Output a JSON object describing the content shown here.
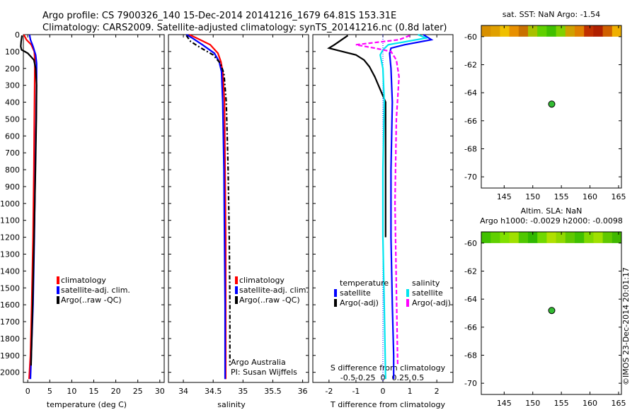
{
  "header": {
    "line1": "Argo profile: CS 7900326_140 15-Dec-2014 20141216_1679 64.81S 153.31E",
    "line2": "Climatology: CARS2009. Satellite-adjusted climatology: synTS_20141216.nc (0.8d later)"
  },
  "colors": {
    "climatology": "#ff0000",
    "satellite": "#0000ff",
    "argo": "#000000",
    "sat_salinity": "#00e5ee",
    "argo_salinity": "#ff00ff",
    "float_marker": "#33bb33"
  },
  "chart_data": [
    {
      "type": "line",
      "name": "temperature-profile",
      "xlabel": "temperature (deg C)",
      "ylabel": "",
      "xlim": [
        -1,
        31
      ],
      "ylim": [
        2060,
        0
      ],
      "xticks": [
        0,
        5,
        10,
        15,
        20,
        25,
        30
      ],
      "yticks": [
        0,
        100,
        200,
        300,
        400,
        500,
        600,
        700,
        800,
        900,
        1000,
        1100,
        1200,
        1300,
        1400,
        1500,
        1600,
        1700,
        1800,
        1900,
        2000
      ],
      "legend": [
        "climatology",
        "satellite-adj. clim.",
        "Argo(..raw -QC)"
      ],
      "series": [
        {
          "name": "climatology",
          "color": "#ff0000",
          "x": [
            -0.9,
            -0.3,
            0.8,
            1.5,
            1.6,
            1.6,
            1.5,
            1.4,
            1.2,
            0.9,
            0.6,
            0.3
          ],
          "y": [
            0,
            30,
            60,
            100,
            150,
            200,
            500,
            800,
            1200,
            1600,
            1900,
            2040
          ]
        },
        {
          "name": "satellite-adj. clim.",
          "color": "#0000ff",
          "x": [
            0.4,
            0.6,
            1.2,
            1.8,
            2.0,
            2.0,
            1.9,
            1.7,
            1.5,
            1.2,
            0.8,
            0.6
          ],
          "y": [
            0,
            30,
            70,
            120,
            170,
            250,
            500,
            800,
            1200,
            1600,
            1900,
            2040
          ]
        },
        {
          "name": "Argo",
          "color": "#000000",
          "x": [
            -1.3,
            -1.5,
            -1.6,
            -1.4,
            0.0,
            1.4,
            1.8,
            2.0,
            1.95,
            1.75,
            1.45,
            1.1,
            0.75
          ],
          "y": [
            5,
            40,
            70,
            90,
            110,
            150,
            200,
            300,
            500,
            800,
            1200,
            1600,
            1960
          ]
        }
      ]
    },
    {
      "type": "line",
      "name": "salinity-profile",
      "xlabel": "salinity",
      "xlim": [
        33.75,
        36.1
      ],
      "ylim": [
        2060,
        0
      ],
      "xticks": [
        34,
        34.5,
        35,
        35.5,
        36
      ],
      "legend": [
        "climatology",
        "satellite-adj. clim.",
        "Argo(..raw -QC)"
      ],
      "annotation": [
        "Argo Australia",
        "PI: Susan Wijffels"
      ],
      "series": [
        {
          "name": "climatology",
          "color": "#ff0000",
          "x": [
            34.1,
            34.22,
            34.45,
            34.58,
            34.63,
            34.66,
            34.69,
            34.7,
            34.71,
            34.71,
            34.71
          ],
          "y": [
            0,
            20,
            60,
            110,
            160,
            220,
            400,
            800,
            1200,
            1600,
            2040
          ]
        },
        {
          "name": "satellite-adj. clim.",
          "color": "#0000ff",
          "x": [
            34.05,
            34.15,
            34.32,
            34.52,
            34.6,
            34.64,
            34.66,
            34.68,
            34.69,
            34.7,
            34.7
          ],
          "y": [
            0,
            20,
            60,
            110,
            160,
            220,
            400,
            800,
            1200,
            1600,
            2040
          ]
        },
        {
          "name": "Argo",
          "color": "#000000",
          "x": [
            34.05,
            34.12,
            34.3,
            34.5,
            34.62,
            34.68,
            34.72,
            34.75,
            34.77,
            34.78,
            34.78
          ],
          "y": [
            5,
            40,
            80,
            120,
            170,
            230,
            400,
            800,
            1200,
            1600,
            1960
          ]
        }
      ]
    },
    {
      "type": "line",
      "name": "difference-profile",
      "xlabel": "T difference from climatology",
      "xlabel_top": "S difference from climatology",
      "xlim": [
        -2.6,
        2.6
      ],
      "ylim": [
        2060,
        0
      ],
      "xticks_t": [
        -2,
        -1,
        0,
        1,
        2
      ],
      "xticks_s": [
        "-0.5",
        "-0.25",
        "0",
        "0.25",
        "0.5"
      ],
      "legend_left_title": "temperature",
      "legend_left": [
        "satellite",
        "Argo(-adj)"
      ],
      "legend_right_title": "salinity",
      "legend_right": [
        "satellite",
        "Argo(-adj)"
      ],
      "series": [
        {
          "name": "T satellite",
          "color": "#0000ff",
          "x": [
            1.5,
            1.8,
            0.8,
            0.3,
            0.25,
            0.3,
            0.35,
            0.3,
            0.3,
            0.35,
            0.4,
            0.4
          ],
          "y": [
            0,
            30,
            60,
            80,
            110,
            200,
            400,
            800,
            1200,
            1600,
            1900,
            2040
          ]
        },
        {
          "name": "T Argo",
          "color": "#000000",
          "x": [
            -1.3,
            -1.8,
            -2.0,
            -1.5,
            -1.0,
            -0.7,
            -0.5,
            -0.3,
            0.1,
            0.1,
            0.1
          ],
          "y": [
            5,
            60,
            80,
            100,
            120,
            150,
            190,
            250,
            400,
            800,
            1200
          ]
        },
        {
          "name": "S satellite",
          "color": "#00e5ee",
          "x": [
            1.3,
            1.6,
            0.2,
            0.0,
            -0.1,
            0.0,
            0.05,
            0.0,
            0.0,
            0.05,
            0.1
          ],
          "y": [
            0,
            20,
            60,
            90,
            120,
            200,
            400,
            800,
            1200,
            1600,
            2040
          ]
        },
        {
          "name": "S Argo",
          "color": "#ff00ff",
          "x": [
            1.0,
            0.6,
            -1.0,
            -0.3,
            0.3,
            0.5,
            0.6,
            0.5,
            0.45,
            0.5,
            0.55
          ],
          "y": [
            5,
            30,
            60,
            80,
            100,
            150,
            250,
            500,
            1000,
            1500,
            1960
          ]
        }
      ]
    },
    {
      "type": "heatmap",
      "name": "sst-map",
      "title": "sat. SST: NaN Argo: -1.54",
      "xlim": [
        141,
        165.5
      ],
      "ylim": [
        -70.8,
        -59.2
      ],
      "xticks": [
        145,
        150,
        155,
        160,
        165
      ],
      "yticks": [
        -60,
        -62,
        -64,
        -66,
        -68,
        -70
      ],
      "band_lat": [
        -59.2,
        -60.0
      ],
      "point": {
        "lon": 153.31,
        "lat": -64.81
      },
      "band_colors": [
        "#d89000",
        "#e0a000",
        "#f0c000",
        "#e89000",
        "#c87000",
        "#a8c000",
        "#60d000",
        "#40c000",
        "#80d000",
        "#d0a000",
        "#e08000",
        "#c03000",
        "#b02000",
        "#d06000",
        "#f0b000"
      ]
    },
    {
      "type": "heatmap",
      "name": "sla-map",
      "title": "Altim. SLA: NaN",
      "subtitle": "Argo h1000: -0.0029 h2000: -0.0098",
      "xlim": [
        141,
        165.5
      ],
      "ylim": [
        -70.8,
        -59.2
      ],
      "xticks": [
        145,
        150,
        155,
        160,
        165
      ],
      "yticks": [
        -60,
        -62,
        -64,
        -66,
        -68,
        -70
      ],
      "band_lat": [
        -59.2,
        -60.0
      ],
      "point": {
        "lon": 153.31,
        "lat": -64.81
      },
      "band_colors": [
        "#40c000",
        "#60d000",
        "#80e000",
        "#a0e000",
        "#50c800",
        "#30b800",
        "#70d800",
        "#b0e000",
        "#90d800",
        "#60c800",
        "#40c000",
        "#80d800",
        "#a0e000",
        "#60c800",
        "#40b800"
      ]
    }
  ],
  "credit": "©IMOS 23-Dec-2014 20:01:17"
}
